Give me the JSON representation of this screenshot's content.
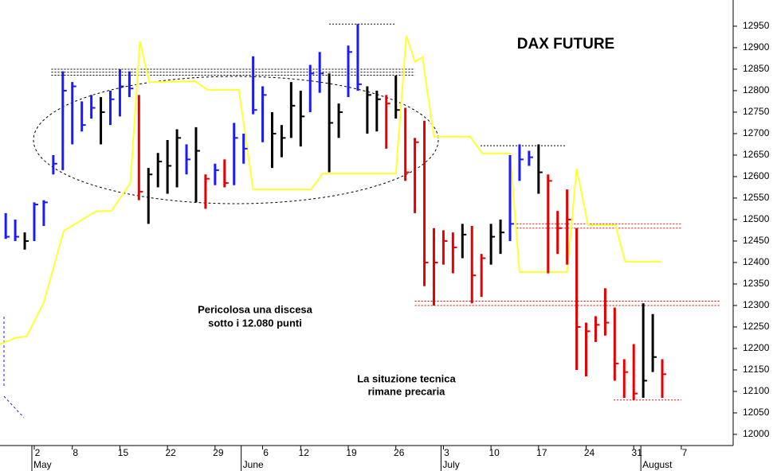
{
  "chart_data": {
    "type": "ohlc",
    "title": "DAX FUTURE",
    "annotations": [
      "Pericolosa una discesa",
      "sotto i 12.080 punti",
      "La situzione tecnica",
      "rimane precaria"
    ],
    "annotation_color": "#e60000",
    "xlim": [
      -3.6,
      73.45
    ],
    "ylim": [
      11974,
      13011
    ],
    "yticks": [
      12000,
      12050,
      12100,
      12150,
      12200,
      12250,
      12300,
      12350,
      12400,
      12450,
      12500,
      12550,
      12600,
      12650,
      12700,
      12750,
      12800,
      12850,
      12900,
      12950
    ],
    "xticks": [
      {
        "value": 0,
        "label": "2"
      },
      {
        "value": 4,
        "label": "8"
      },
      {
        "value": 9,
        "label": "15"
      },
      {
        "value": 14,
        "label": "22"
      },
      {
        "value": 19,
        "label": "29"
      },
      {
        "value": 24,
        "label": "6"
      },
      {
        "value": 28,
        "label": "12"
      },
      {
        "value": 33,
        "label": "19"
      },
      {
        "value": 38,
        "label": "26"
      },
      {
        "value": 43,
        "label": "3"
      },
      {
        "value": 48,
        "label": "10"
      },
      {
        "value": 53,
        "label": "17"
      },
      {
        "value": 58,
        "label": "24"
      },
      {
        "value": 63,
        "label": "31"
      },
      {
        "value": 68,
        "label": "7"
      }
    ],
    "month_ticks": [
      {
        "value": 0,
        "label": "May"
      },
      {
        "value": 22,
        "label": "June"
      },
      {
        "value": 43,
        "label": "July"
      },
      {
        "value": 64,
        "label": "August"
      }
    ],
    "x": [
      -3,
      -2,
      -1,
      0,
      1,
      2,
      3,
      4,
      5,
      6,
      7,
      8,
      9,
      10,
      11,
      12,
      13,
      14,
      15,
      16,
      17,
      18,
      19,
      20,
      21,
      22,
      23,
      24,
      25,
      26,
      27,
      28,
      29,
      30,
      31,
      32,
      33,
      34,
      35,
      36,
      37,
      38,
      39,
      40,
      41,
      42,
      43,
      44,
      45,
      46,
      47,
      48,
      49,
      50,
      51,
      52,
      53,
      54,
      55,
      56,
      57,
      58,
      59,
      60,
      61,
      62,
      63,
      64,
      65,
      66
    ],
    "high": [
      12515,
      12500,
      12470,
      12540,
      12545,
      12650,
      12845,
      12820,
      12775,
      12790,
      12785,
      12800,
      12850,
      12845,
      12790,
      12620,
      12655,
      12685,
      12710,
      12675,
      12715,
      12605,
      12630,
      12640,
      12725,
      12700,
      12880,
      12810,
      12750,
      12720,
      12820,
      12800,
      12860,
      12890,
      12840,
      12770,
      12905,
      12955,
      12810,
      12800,
      12790,
      12835,
      12760,
      12690,
      12730,
      12480,
      12475,
      12470,
      12490,
      12485,
      12420,
      12490,
      12500,
      12650,
      12675,
      12660,
      12675,
      12605,
      12520,
      12570,
      12480,
      12260,
      12275,
      12340,
      12295,
      12175,
      12210,
      12305,
      12280,
      12175
    ],
    "low": [
      12455,
      12450,
      12430,
      12450,
      12485,
      12605,
      12615,
      12675,
      12705,
      12735,
      12675,
      12720,
      12740,
      12785,
      12545,
      12490,
      12575,
      12560,
      12575,
      12605,
      12540,
      12525,
      12580,
      12575,
      12580,
      12630,
      12745,
      12680,
      12620,
      12645,
      12690,
      12670,
      12750,
      12795,
      12610,
      12690,
      12785,
      12800,
      12700,
      12705,
      12665,
      12735,
      12590,
      12515,
      12345,
      12300,
      12395,
      12375,
      12410,
      12305,
      12320,
      12395,
      12420,
      12450,
      12590,
      12625,
      12560,
      12375,
      12420,
      12395,
      12150,
      12135,
      12215,
      12230,
      12125,
      12085,
      12080,
      12085,
      12145,
      12085
    ],
    "close": [
      12460,
      12460,
      12450,
      12535,
      12540,
      12630,
      12800,
      12810,
      12720,
      12760,
      12750,
      12780,
      12810,
      12805,
      12565,
      12605,
      12635,
      12625,
      12690,
      12640,
      12660,
      12595,
      12615,
      12585,
      12690,
      12665,
      12755,
      12790,
      12700,
      12690,
      12765,
      12740,
      12840,
      12840,
      12725,
      12750,
      12890,
      12815,
      12790,
      12780,
      12770,
      12755,
      12610,
      12680,
      12400,
      12400,
      12450,
      12435,
      12465,
      12370,
      12410,
      12460,
      12470,
      12490,
      12640,
      12645,
      12610,
      12590,
      12480,
      12500,
      12250,
      12240,
      12255,
      12260,
      12165,
      12145,
      12095,
      12125,
      12180,
      12140
    ],
    "bar_colors": [
      "#1a1aff",
      "#1a1aff",
      "#000000",
      "#1a1aff",
      "#1a1aff",
      "#1a1aff",
      "#1a1aff",
      "#1a1aff",
      "#1a1aff",
      "#1a1aff",
      "#000000",
      "#1a1aff",
      "#1a1aff",
      "#1a1aff",
      "#e60000",
      "#000000",
      "#000000",
      "#000000",
      "#000000",
      "#1a1aff",
      "#000000",
      "#e60000",
      "#1a1aff",
      "#e60000",
      "#1a1aff",
      "#1a1aff",
      "#1a1aff",
      "#1a1aff",
      "#000000",
      "#000000",
      "#000000",
      "#000000",
      "#1a1aff",
      "#1a1aff",
      "#000000",
      "#000000",
      "#1a1aff",
      "#1a1aff",
      "#000000",
      "#000000",
      "#e60000",
      "#000000",
      "#e60000",
      "#e60000",
      "#e60000",
      "#e60000",
      "#e60000",
      "#e60000",
      "#000000",
      "#e60000",
      "#e60000",
      "#000000",
      "#000000",
      "#1a1aff",
      "#1a1aff",
      "#1a1aff",
      "#000000",
      "#e60000",
      "#e60000",
      "#e60000",
      "#e60000",
      "#e60000",
      "#e60000",
      "#e60000",
      "#e60000",
      "#e60000",
      "#e60000",
      "#000000",
      "#000000",
      "#e60000"
    ],
    "line": {
      "color": "#ffff33",
      "x": [
        -3.6,
        -1.9,
        -0.8,
        1.0,
        3.1,
        5.2,
        6.5,
        8.1,
        10.1,
        11.1,
        12.1,
        16.9,
        18.2,
        21.5,
        23.0,
        29.1,
        30.3,
        38.0,
        39.1,
        40.0,
        40.8,
        42.0,
        45.8,
        47.1,
        50.0,
        51.0,
        56.0,
        57.0,
        58.2,
        61.1,
        62.1,
        65.9
      ],
      "values": [
        12210,
        12225,
        12228,
        12307,
        12474,
        12502,
        12519,
        12520,
        12585,
        12915,
        12820,
        12822,
        12802,
        12802,
        12570,
        12570,
        12607,
        12607,
        12928,
        12867,
        12878,
        12693,
        12693,
        12654,
        12654,
        12378,
        12378,
        12618,
        12487,
        12487,
        12402,
        12402
      ]
    },
    "levels": [
      {
        "value": 12850,
        "x": [
          1.8,
          40
        ],
        "color": "#000000"
      },
      {
        "value": 12843,
        "x": [
          1.8,
          40
        ],
        "color": "#000000"
      },
      {
        "value": 12836,
        "x": [
          1.8,
          40
        ],
        "color": "#000000"
      },
      {
        "value": 12955,
        "x": [
          31,
          38
        ],
        "color": "#000000"
      },
      {
        "value": 12672,
        "x": [
          46.9,
          55.9
        ],
        "color": "#000000"
      },
      {
        "value": 12490,
        "x": [
          50.7,
          68
        ],
        "color": "#e60000"
      },
      {
        "value": 12480,
        "x": [
          50.7,
          68
        ],
        "color": "#e60000"
      },
      {
        "value": 12310,
        "x": [
          40,
          72
        ],
        "color": "#e60000"
      },
      {
        "value": 12300,
        "x": [
          40,
          72
        ],
        "color": "#e60000"
      },
      {
        "value": 12080,
        "x": [
          60.9,
          68
        ],
        "color": "#e60000"
      }
    ]
  }
}
